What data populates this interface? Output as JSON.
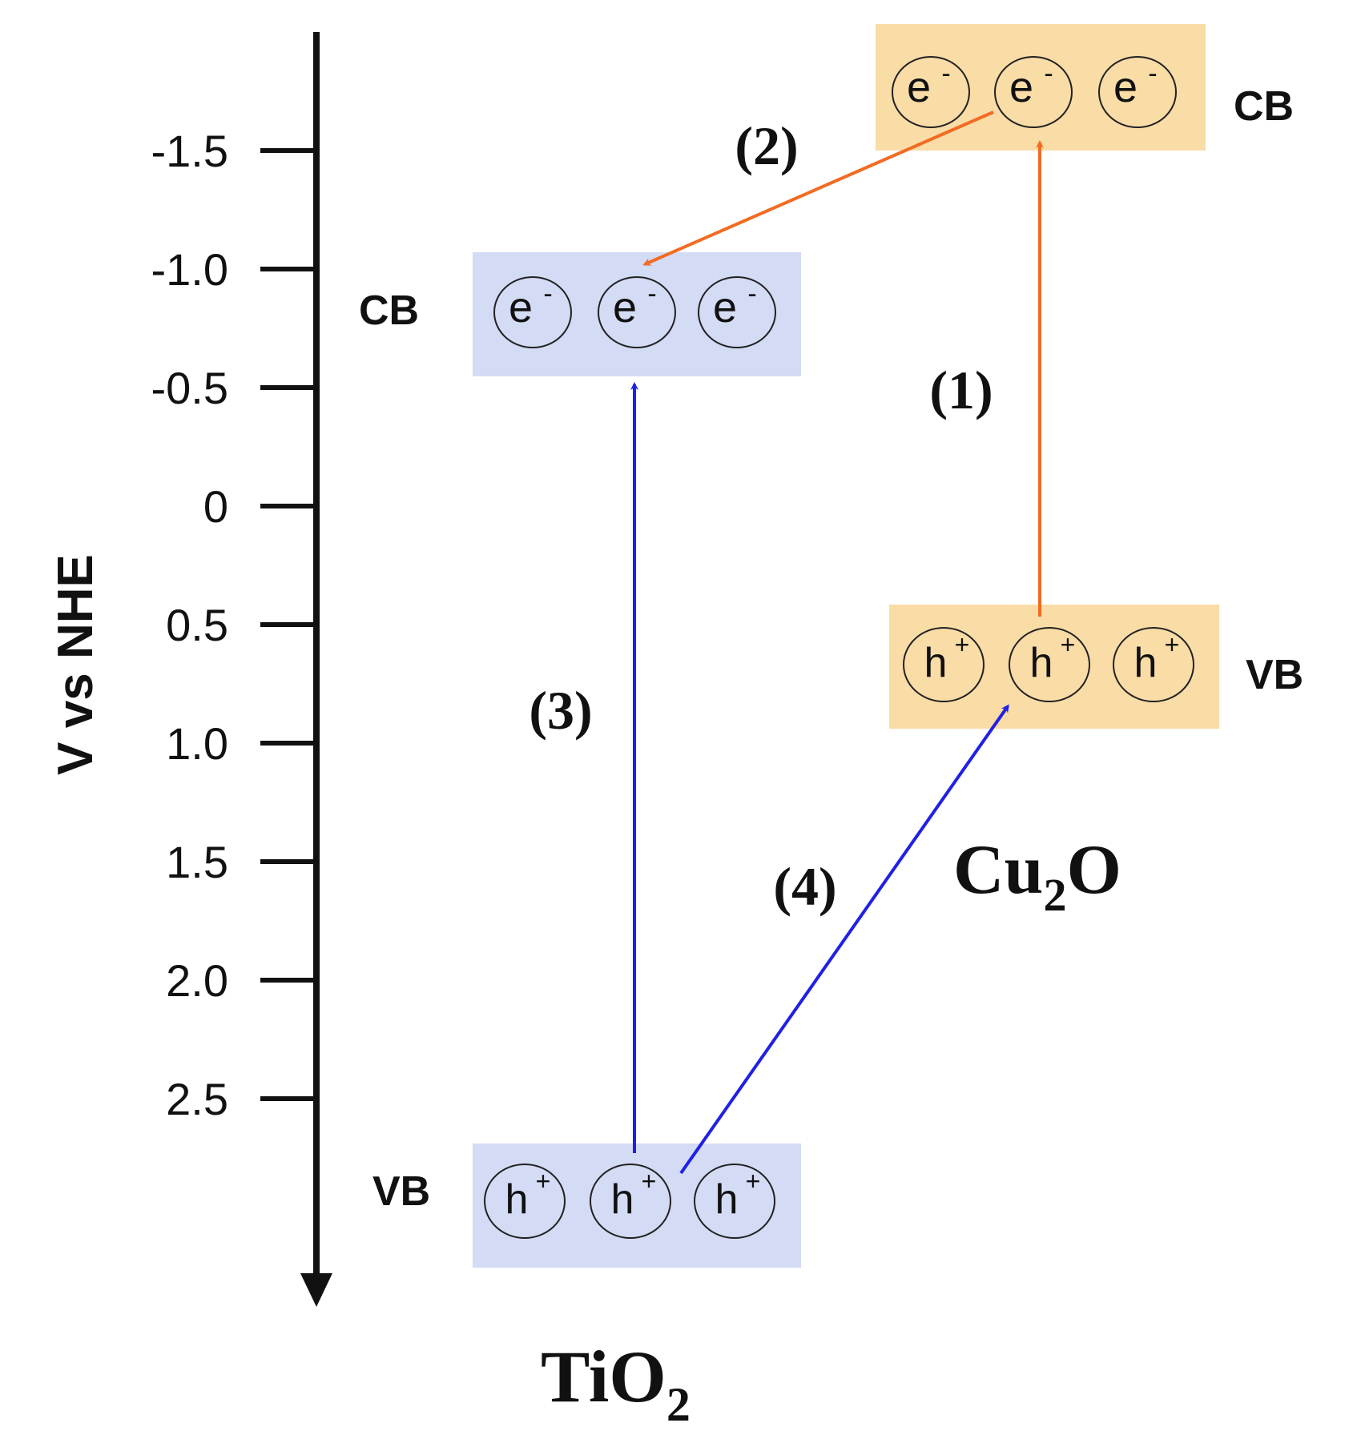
{
  "axis": {
    "label": "V vs NHE",
    "ticks": [
      "-1.5",
      "-1.0",
      "-0.5",
      "0",
      "0.5",
      "1.0",
      "1.5",
      "2.0",
      "2.5"
    ]
  },
  "tio2": {
    "name_main": "TiO",
    "name_sub": "2",
    "cb_label": "CB",
    "vb_label": "VB",
    "electron": "e",
    "electron_sup": "-",
    "hole": "h",
    "hole_sup": "+",
    "band_color": "#d3dbf5"
  },
  "cu2o": {
    "name_a": "Cu",
    "name_sub": "2",
    "name_b": "O",
    "cb_label": "CB",
    "vb_label": "VB",
    "electron": "e",
    "electron_sup": "-",
    "hole": "h",
    "hole_sup": "+",
    "band_color": "#f9dca6"
  },
  "steps": [
    "(1)",
    "(2)",
    "(3)",
    "(4)"
  ],
  "colors": {
    "orange_arrow": "#f26b22",
    "blue_arrow": "#2020e6",
    "axis": "#111111"
  }
}
